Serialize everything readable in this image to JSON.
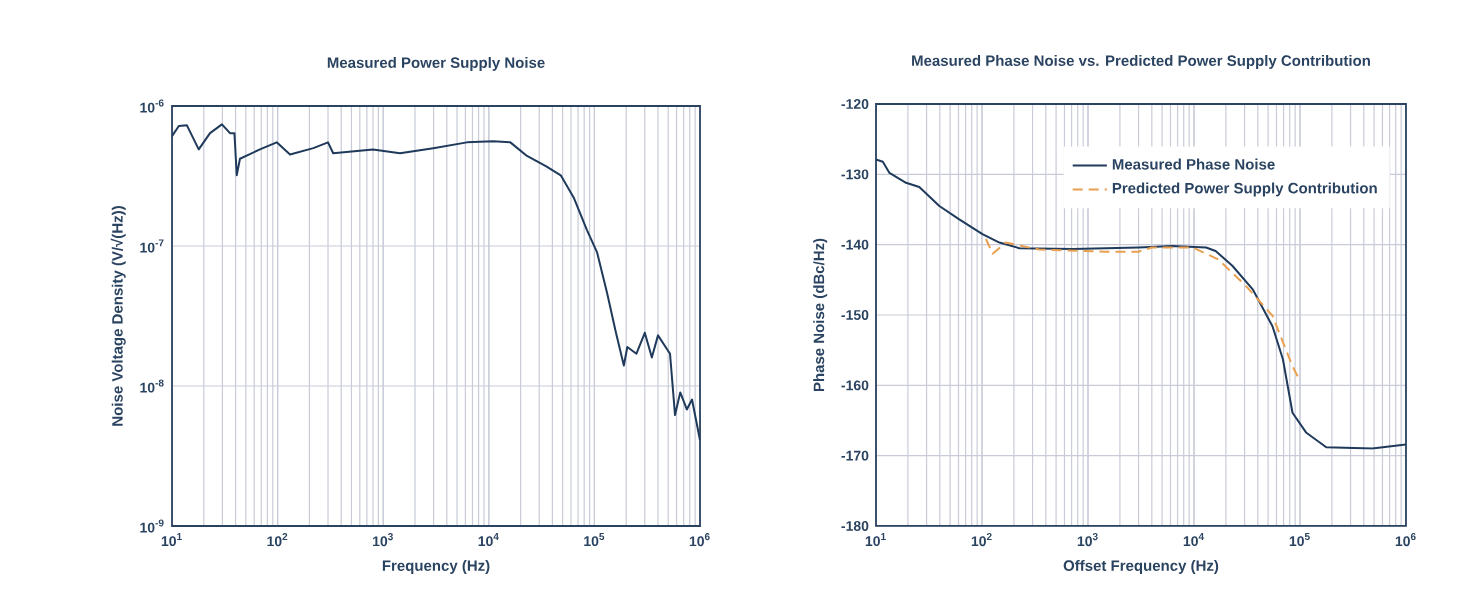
{
  "chart_data": [
    {
      "type": "line",
      "title": "Measured Power Supply Noise",
      "xlabel": "Frequency (Hz)",
      "ylabel": "Noise Voltage Density (V/√(Hz))",
      "log": "xy",
      "grid": true,
      "xlim": [
        10,
        1000000
      ],
      "ylim": [
        1e-09,
        1e-06
      ],
      "xticks": [
        {
          "value": 10,
          "label": "10$^{1}$"
        },
        {
          "value": 100,
          "label": "10$^{2}$"
        },
        {
          "value": 1000,
          "label": "10$^{3}$"
        },
        {
          "value": 10000,
          "label": "10$^{4}$"
        },
        {
          "value": 100000,
          "label": "10$^{5}$"
        },
        {
          "value": 1000000,
          "label": "10$^{6}$"
        }
      ],
      "yticks": [
        {
          "value": 1e-09,
          "label": "10$^{-9}$"
        },
        {
          "value": 1e-08,
          "label": "10$^{-8}$"
        },
        {
          "value": 1e-07,
          "label": "10$^{-7}$"
        },
        {
          "value": 1e-06,
          "label": "10$^{-6}$"
        }
      ],
      "series": [
        {
          "color": "#1f3a5a",
          "x": [
            10,
            11.6,
            13.8,
            17.9,
            22.9,
            29.7,
            35.4,
            39,
            41,
            44,
            68,
            98,
            131,
            218,
            300,
            336,
            800,
            1440,
            2980,
            6200,
            11000,
            16000,
            23000,
            35000,
            48000,
            64000,
            85000,
            106000,
            132000,
            160000,
            190000,
            205000,
            250000,
            300000,
            350000,
            400000,
            520000,
            580000,
            650000,
            750000,
            840000,
            1000000
          ],
          "values": [
            6.1e-07,
            7.2e-07,
            7.3e-07,
            4.9e-07,
            6.4e-07,
            7.4e-07,
            6.4e-07,
            6.4e-07,
            3.2e-07,
            4.2e-07,
            4.9e-07,
            5.5e-07,
            4.5e-07,
            5e-07,
            5.5e-07,
            4.6e-07,
            4.9e-07,
            4.6e-07,
            5e-07,
            5.5e-07,
            5.6e-07,
            5.5e-07,
            4.4e-07,
            3.7e-07,
            3.2e-07,
            2.2e-07,
            1.3e-07,
            9e-08,
            4.6e-08,
            2.4e-08,
            1.4e-08,
            1.9e-08,
            1.7e-08,
            2.4e-08,
            1.6e-08,
            2.3e-08,
            1.7e-08,
            6.2e-09,
            9e-09,
            6.8e-09,
            8e-09,
            4.1e-09
          ]
        }
      ]
    },
    {
      "type": "line",
      "title": "Measured Phase Noise vs. Predicted Power Supply Contribution",
      "xlabel": "Offset Frequency (Hz)",
      "ylabel": "Phase Noise (dBc/Hz)",
      "log": "x",
      "grid": true,
      "legend": "top right",
      "xlim": [
        10,
        1000000
      ],
      "ylim": [
        -180,
        -120
      ],
      "xticks": [
        {
          "value": 10,
          "label": "10$^{1}$"
        },
        {
          "value": 100,
          "label": "10$^{2}$"
        },
        {
          "value": 1000,
          "label": "10$^{3}$"
        },
        {
          "value": 10000,
          "label": "10$^{4}$"
        },
        {
          "value": 100000,
          "label": "10$^{5}$"
        },
        {
          "value": 1000000,
          "label": "10$^{6}$"
        }
      ],
      "yticks": [
        -180,
        -170,
        -160,
        -150,
        -140,
        -130,
        -120
      ],
      "series": [
        {
          "name": "Measured Phase Noise",
          "color": "#1f3a5a",
          "line_style": "solid",
          "x": [
            10,
            11.6,
            13.4,
            19.2,
            25.6,
            39.6,
            61,
            101,
            146,
            225,
            716,
            3000,
            6200,
            13000,
            16000,
            23000,
            36000,
            55000,
            69000,
            85000,
            114000,
            177000,
            480000,
            1000000
          ],
          "values": [
            -127.9,
            -128.2,
            -129.8,
            -131.2,
            -131.8,
            -134.5,
            -136.4,
            -138.5,
            -139.7,
            -140.5,
            -140.6,
            -140.4,
            -140.2,
            -140.4,
            -140.9,
            -143,
            -146.4,
            -151.6,
            -156.3,
            -163.9,
            -166.7,
            -168.8,
            -169,
            -168.4
          ]
        },
        {
          "name": "Predicted Power Supply Contribution",
          "color": "#e8a050",
          "line_style": "dashed",
          "x": [
            109,
            126,
            167,
            346,
            1470,
            3000,
            4000,
            9700,
            17000,
            31000,
            55000,
            85000,
            95000
          ],
          "values": [
            -139.2,
            -141.3,
            -139.7,
            -140.7,
            -141,
            -141,
            -140.4,
            -140.4,
            -142.1,
            -145.9,
            -150.1,
            -157.3,
            -158.7
          ]
        }
      ]
    }
  ]
}
